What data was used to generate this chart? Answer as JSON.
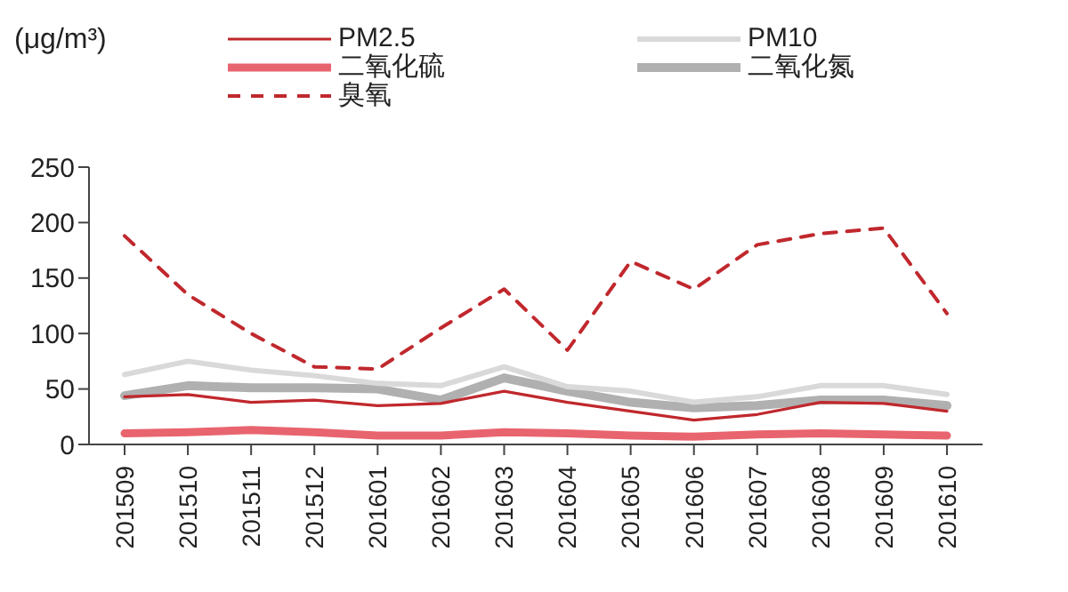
{
  "chart_data": {
    "type": "line",
    "ylabel": "(μg/m³)",
    "categories": [
      "201509",
      "201510",
      "201511",
      "201512",
      "201601",
      "201602",
      "201603",
      "201604",
      "201605",
      "201606",
      "201607",
      "201608",
      "201609",
      "201610"
    ],
    "series": [
      {
        "name": "PM2.5",
        "color": "#c0282d",
        "line_style": "solid",
        "values": [
          43,
          45,
          38,
          40,
          35,
          37,
          48,
          38,
          30,
          22,
          27,
          38,
          37,
          30
        ]
      },
      {
        "name": "PM10",
        "color": "#d9d9d9",
        "line_style": "solid",
        "values": [
          63,
          75,
          67,
          62,
          55,
          53,
          70,
          52,
          48,
          38,
          43,
          53,
          53,
          45
        ]
      },
      {
        "name": "二氧化硫",
        "color": "#e8646e",
        "line_style": "solid",
        "values": [
          10,
          11,
          13,
          11,
          8,
          8,
          11,
          10,
          8,
          7,
          9,
          10,
          9,
          8
        ]
      },
      {
        "name": "二氧化氮",
        "color": "#b0b0b0",
        "line_style": "solid",
        "values": [
          44,
          53,
          51,
          51,
          50,
          40,
          60,
          48,
          38,
          33,
          35,
          40,
          40,
          35
        ]
      },
      {
        "name": "臭氧",
        "color": "#c0282d",
        "line_style": "dashed",
        "values": [
          188,
          135,
          100,
          70,
          68,
          105,
          140,
          85,
          165,
          140,
          180,
          190,
          195,
          118
        ]
      }
    ],
    "ylim": [
      0,
      250
    ],
    "yticks": [
      0,
      50,
      100,
      150,
      200,
      250
    ],
    "grid": false,
    "legend": "top",
    "marker": "none"
  }
}
